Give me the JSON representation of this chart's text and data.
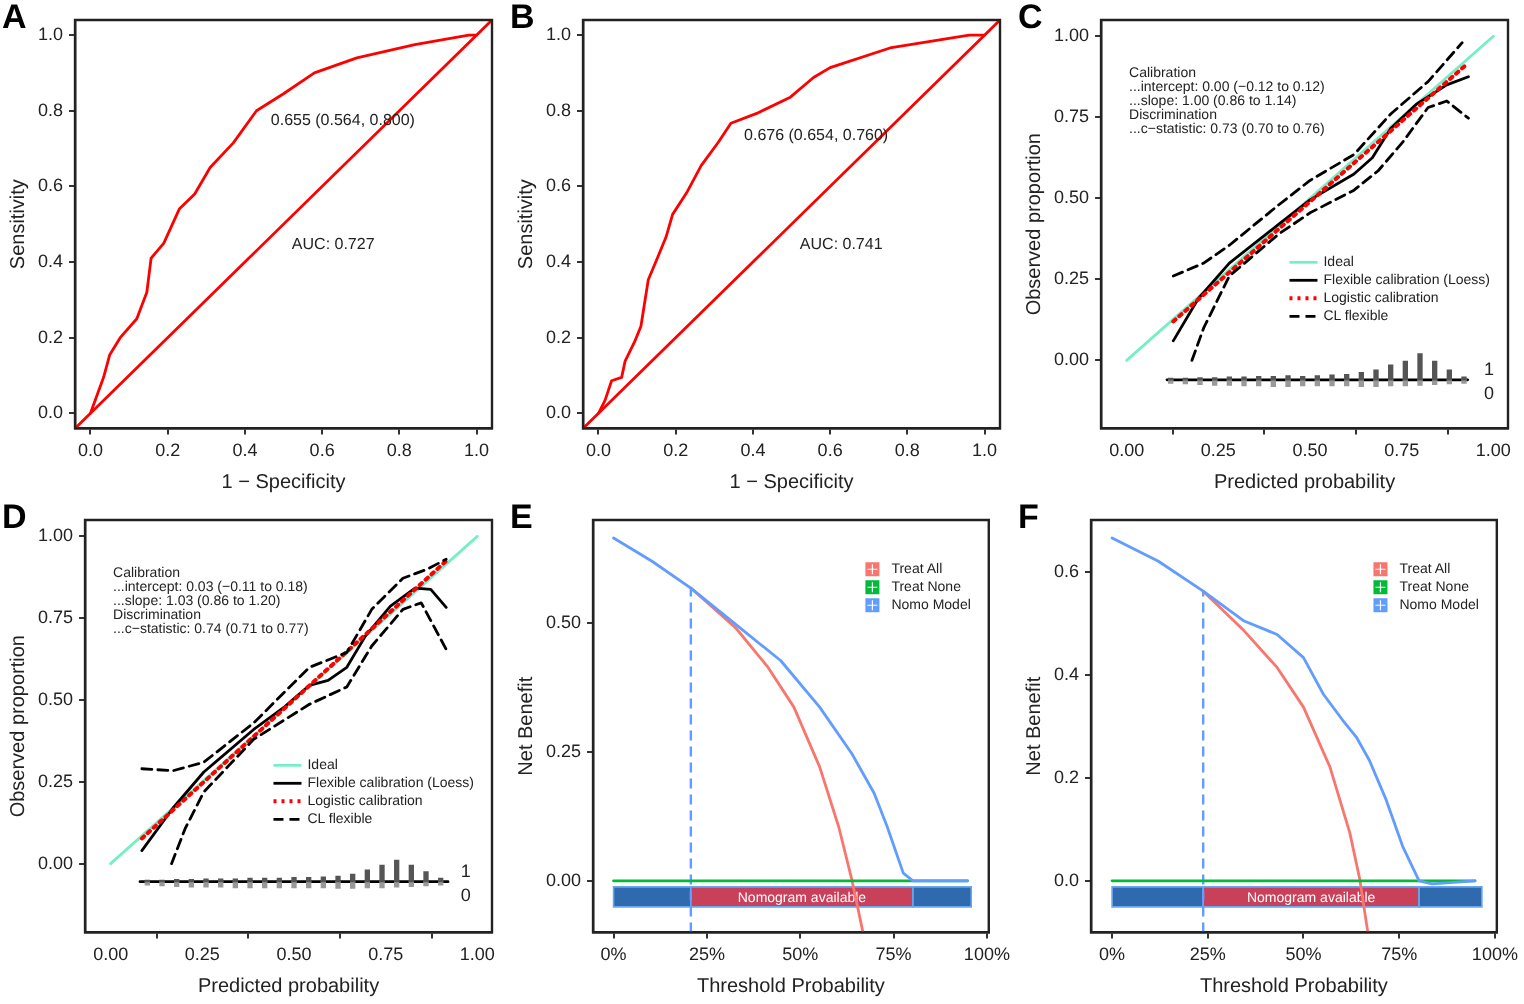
{
  "chart_data": [
    {
      "type": "line",
      "title": "A",
      "xlabel": "1 − Specificity",
      "ylabel": "Sensitivity",
      "xlim": [
        -0.04,
        1.04
      ],
      "ylim": [
        -0.04,
        1.04
      ],
      "xticks": [
        {
          "value": 0,
          "label": "0.0"
        },
        {
          "value": 0.2,
          "label": "0.2"
        },
        {
          "value": 0.4,
          "label": "0.4"
        },
        {
          "value": 0.6,
          "label": "0.6"
        },
        {
          "value": 0.8,
          "label": "0.8"
        },
        {
          "value": 1,
          "label": "1.0"
        }
      ],
      "yticks": [
        {
          "value": 0,
          "label": "0.0"
        },
        {
          "value": 0.2,
          "label": "0.2"
        },
        {
          "value": 0.4,
          "label": "0.4"
        },
        {
          "value": 0.6,
          "label": "0.6"
        },
        {
          "value": 0.8,
          "label": "0.8"
        },
        {
          "value": 1,
          "label": "1.0"
        }
      ],
      "series": [
        {
          "color": "#ff0000",
          "x": [
            0,
            0.034,
            0.05,
            0.077,
            0.12,
            0.146,
            0.157,
            0.19,
            0.23,
            0.27,
            0.31,
            0.37,
            0.43,
            0.5,
            0.58,
            0.69,
            0.84,
            0.98,
            1
          ],
          "values": [
            0,
            0.095,
            0.155,
            0.2,
            0.25,
            0.32,
            0.41,
            0.45,
            0.54,
            0.58,
            0.65,
            0.715,
            0.8,
            0.845,
            0.9,
            0.94,
            0.975,
            1,
            1
          ]
        },
        {
          "color": "#ff0000",
          "x": [
            -0.04,
            1.04
          ],
          "values": [
            -0.04,
            1.04
          ]
        }
      ],
      "annotations": [
        {
          "text": "0.655 (0.564, 0.800)",
          "x": 0.436,
          "y": 0.8
        },
        "AUC: 0.727"
      ]
    },
    {
      "type": "line",
      "title": "B",
      "xlabel": "1 − Specificity",
      "ylabel": "Sensitivity",
      "xlim": [
        -0.04,
        1.04
      ],
      "ylim": [
        -0.04,
        1.04
      ],
      "xticks": [
        {
          "value": 0,
          "label": "0.0"
        },
        {
          "value": 0.2,
          "label": "0.2"
        },
        {
          "value": 0.4,
          "label": "0.4"
        },
        {
          "value": 0.6,
          "label": "0.6"
        },
        {
          "value": 0.8,
          "label": "0.8"
        },
        {
          "value": 1,
          "label": "1.0"
        }
      ],
      "yticks": [
        {
          "value": 0,
          "label": "0.0"
        },
        {
          "value": 0.2,
          "label": "0.2"
        },
        {
          "value": 0.4,
          "label": "0.4"
        },
        {
          "value": 0.6,
          "label": "0.6"
        },
        {
          "value": 0.8,
          "label": "0.8"
        },
        {
          "value": 1,
          "label": "1.0"
        }
      ],
      "series": [
        {
          "color": "#ff0000",
          "x": [
            0,
            0.017,
            0.034,
            0.06,
            0.069,
            0.094,
            0.11,
            0.129,
            0.154,
            0.175,
            0.192,
            0.23,
            0.266,
            0.31,
            0.343,
            0.41,
            0.497,
            0.557,
            0.6,
            0.755,
            0.96,
            1
          ],
          "values": [
            0,
            0.034,
            0.086,
            0.095,
            0.138,
            0.19,
            0.23,
            0.353,
            0.414,
            0.466,
            0.526,
            0.586,
            0.655,
            0.716,
            0.767,
            0.793,
            0.836,
            0.888,
            0.914,
            0.966,
            1,
            1
          ]
        },
        {
          "color": "#ff0000",
          "x": [
            -0.04,
            1.04
          ],
          "values": [
            -0.04,
            1.04
          ]
        }
      ],
      "annotations": [
        {
          "text": "0.676 (0.654, 0.760)",
          "x": 0.346,
          "y": 0.76
        },
        "AUC: 0.741"
      ]
    },
    {
      "type": "line",
      "title": "C",
      "xlabel": "Predicted probability",
      "ylabel": "Observed proportion",
      "xlim": [
        -0.07,
        1.04
      ],
      "ylim": [
        -0.21,
        1.05
      ],
      "xticks": [
        {
          "value": 0,
          "label": "0.00"
        },
        {
          "value": 0.25,
          "label": "0.25"
        },
        {
          "value": 0.5,
          "label": "0.50"
        },
        {
          "value": 0.75,
          "label": "0.75"
        },
        {
          "value": 1,
          "label": "1.00"
        }
      ],
      "yticks": [
        {
          "value": 0,
          "label": "0.00"
        },
        {
          "value": 0.25,
          "label": "0.25"
        },
        {
          "value": 0.5,
          "label": "0.50"
        },
        {
          "value": 0.75,
          "label": "0.75"
        },
        {
          "value": 1,
          "label": "1.00"
        }
      ],
      "legend": "bottom right",
      "series": [
        {
          "name": "Ideal",
          "color": "#76eec6",
          "x": [
            0,
            1
          ],
          "values": [
            0,
            1
          ]
        },
        {
          "name": "Flexible calibration (Loess)",
          "color": "#000000",
          "x": [
            0.127,
            0.195,
            0.28,
            0.415,
            0.5,
            0.62,
            0.67,
            0.72,
            0.79,
            0.873,
            0.932
          ],
          "values": [
            0.06,
            0.19,
            0.3,
            0.42,
            0.495,
            0.575,
            0.625,
            0.715,
            0.79,
            0.85,
            0.875
          ]
        },
        {
          "name": "Logistic calibration",
          "color": "#ff0000",
          "line_style": "dotted",
          "x": [
            0.127,
            0.924
          ],
          "values": [
            0.12,
            0.91
          ]
        },
        {
          "name": "CL flexible",
          "color": "#000000",
          "line_style": "dashed",
          "x": [
            0.127,
            0.21,
            0.28,
            0.415,
            0.5,
            0.62,
            0.72,
            0.822,
            0.915
          ],
          "values": [
            0.26,
            0.3,
            0.355,
            0.48,
            0.555,
            0.635,
            0.76,
            0.86,
            0.98
          ]
        },
        {
          "color": "#000000",
          "line_style": "dashed",
          "x": [
            0.178,
            0.21,
            0.28,
            0.415,
            0.5,
            0.62,
            0.686,
            0.754,
            0.822,
            0.873,
            0.932
          ],
          "values": [
            0,
            0.1,
            0.26,
            0.39,
            0.455,
            0.525,
            0.585,
            0.675,
            0.78,
            0.8,
            0.747
          ]
        },
        {
          "type": "bar",
          "name": "1",
          "color": "#555555",
          "x": [
            0.12,
            0.16,
            0.2,
            0.24,
            0.28,
            0.32,
            0.36,
            0.4,
            0.44,
            0.48,
            0.52,
            0.56,
            0.6,
            0.64,
            0.68,
            0.72,
            0.76,
            0.8,
            0.84,
            0.88,
            0.92
          ],
          "base": [
            -0.06,
            -0.06,
            -0.06,
            -0.06,
            -0.06,
            -0.06,
            -0.06,
            -0.06,
            -0.06,
            -0.06,
            -0.06,
            -0.06,
            -0.06,
            -0.06,
            -0.06,
            -0.06,
            -0.06,
            -0.06,
            -0.06,
            -0.06,
            -0.06
          ],
          "values": [
            0.004,
            0.004,
            0.006,
            0.006,
            0.008,
            0.008,
            0.01,
            0.01,
            0.012,
            0.01,
            0.012,
            0.014,
            0.016,
            0.022,
            0.03,
            0.045,
            0.06,
            0.08,
            0.06,
            0.03,
            0.008
          ]
        },
        {
          "type": "bar",
          "name": "0",
          "color": "#999999",
          "x": [
            0.12,
            0.16,
            0.2,
            0.24,
            0.28,
            0.32,
            0.36,
            0.4,
            0.44,
            0.48,
            0.52,
            0.56,
            0.6,
            0.64,
            0.68,
            0.72,
            0.76,
            0.8,
            0.84,
            0.88,
            0.92
          ],
          "base": [
            -0.06,
            -0.06,
            -0.06,
            -0.06,
            -0.06,
            -0.06,
            -0.06,
            -0.06,
            -0.06,
            -0.06,
            -0.06,
            -0.06,
            -0.06,
            -0.06,
            -0.06,
            -0.06,
            -0.06,
            -0.06,
            -0.06,
            -0.06,
            -0.06
          ],
          "values": [
            -0.01,
            -0.012,
            -0.014,
            -0.016,
            -0.016,
            -0.018,
            -0.018,
            -0.02,
            -0.02,
            -0.018,
            -0.018,
            -0.018,
            -0.018,
            -0.02,
            -0.02,
            -0.018,
            -0.018,
            -0.016,
            -0.014,
            -0.012,
            -0.01
          ]
        },
        {
          "color": "#000000",
          "x": [
            0.11,
            0.93
          ],
          "values": [
            -0.06,
            -0.06
          ]
        }
      ],
      "annotations": [
        "Calibration",
        "...intercept: 0.00 (−0.12 to 0.12)",
        "...slope: 1.00 (0.86 to 1.14)",
        "Discrimination",
        "...c−statistic: 0.73 (0.70 to 0.76)"
      ]
    },
    {
      "type": "line",
      "title": "D",
      "xlabel": "Predicted probability",
      "ylabel": "Observed proportion",
      "xlim": [
        -0.07,
        1.04
      ],
      "ylim": [
        -0.21,
        1.05
      ],
      "xticks": [
        {
          "value": 0,
          "label": "0.00"
        },
        {
          "value": 0.25,
          "label": "0.25"
        },
        {
          "value": 0.5,
          "label": "0.50"
        },
        {
          "value": 0.75,
          "label": "0.75"
        },
        {
          "value": 1,
          "label": "1.00"
        }
      ],
      "yticks": [
        {
          "value": 0,
          "label": "0.00"
        },
        {
          "value": 0.25,
          "label": "0.25"
        },
        {
          "value": 0.5,
          "label": "0.50"
        },
        {
          "value": 0.75,
          "label": "0.75"
        },
        {
          "value": 1,
          "label": "1.00"
        }
      ],
      "legend": "bottom right",
      "series": [
        {
          "name": "Ideal",
          "color": "#76eec6",
          "x": [
            0,
            1
          ],
          "values": [
            0,
            1
          ]
        },
        {
          "name": "Flexible calibration (Loess)",
          "color": "#000000",
          "x": [
            0.085,
            0.17,
            0.254,
            0.39,
            0.475,
            0.542,
            0.593,
            0.644,
            0.695,
            0.763,
            0.83,
            0.873,
            0.915
          ],
          "values": [
            0.04,
            0.17,
            0.28,
            0.41,
            0.48,
            0.545,
            0.56,
            0.6,
            0.696,
            0.787,
            0.842,
            0.838,
            0.783
          ]
        },
        {
          "name": "Logistic calibration",
          "color": "#ff0000",
          "line_style": "dotted",
          "x": [
            0.085,
            0.915
          ],
          "values": [
            0.077,
            0.925
          ]
        },
        {
          "name": "CL flexible",
          "color": "#000000",
          "line_style": "dashed",
          "x": [
            0.085,
            0.17,
            0.254,
            0.39,
            0.542,
            0.644,
            0.712,
            0.797,
            0.864,
            0.915
          ],
          "values": [
            0.29,
            0.284,
            0.31,
            0.43,
            0.6,
            0.645,
            0.777,
            0.872,
            0.9,
            0.93
          ]
        },
        {
          "color": "#000000",
          "line_style": "dashed",
          "x": [
            0.166,
            0.203,
            0.254,
            0.39,
            0.542,
            0.644,
            0.712,
            0.797,
            0.847,
            0.915
          ],
          "values": [
            0,
            0.107,
            0.219,
            0.38,
            0.487,
            0.54,
            0.665,
            0.777,
            0.797,
            0.655
          ]
        },
        {
          "type": "bar",
          "name": "1",
          "color": "#555555",
          "x": [
            0.1,
            0.14,
            0.18,
            0.22,
            0.26,
            0.3,
            0.34,
            0.38,
            0.42,
            0.46,
            0.5,
            0.54,
            0.58,
            0.62,
            0.66,
            0.7,
            0.74,
            0.78,
            0.82,
            0.86,
            0.9
          ],
          "base": [
            -0.055,
            -0.055,
            -0.055,
            -0.055,
            -0.055,
            -0.055,
            -0.055,
            -0.055,
            -0.055,
            -0.055,
            -0.055,
            -0.055,
            -0.055,
            -0.055,
            -0.055,
            -0.055,
            -0.055,
            -0.055,
            -0.055,
            -0.055,
            -0.055
          ],
          "values": [
            0.004,
            0.004,
            0.006,
            0.006,
            0.008,
            0.008,
            0.008,
            0.01,
            0.01,
            0.01,
            0.012,
            0.012,
            0.014,
            0.016,
            0.022,
            0.035,
            0.05,
            0.065,
            0.05,
            0.03,
            0.01
          ]
        },
        {
          "type": "bar",
          "name": "0",
          "color": "#999999",
          "x": [
            0.1,
            0.14,
            0.18,
            0.22,
            0.26,
            0.3,
            0.34,
            0.38,
            0.42,
            0.46,
            0.5,
            0.54,
            0.58,
            0.62,
            0.66,
            0.7,
            0.74,
            0.78,
            0.82,
            0.86,
            0.9
          ],
          "base": [
            -0.055,
            -0.055,
            -0.055,
            -0.055,
            -0.055,
            -0.055,
            -0.055,
            -0.055,
            -0.055,
            -0.055,
            -0.055,
            -0.055,
            -0.055,
            -0.055,
            -0.055,
            -0.055,
            -0.055,
            -0.055,
            -0.055,
            -0.055,
            -0.055
          ],
          "values": [
            -0.01,
            -0.012,
            -0.014,
            -0.016,
            -0.016,
            -0.016,
            -0.018,
            -0.018,
            -0.018,
            -0.018,
            -0.018,
            -0.018,
            -0.018,
            -0.02,
            -0.02,
            -0.018,
            -0.018,
            -0.016,
            -0.014,
            -0.012,
            -0.01
          ]
        },
        {
          "color": "#000000",
          "x": [
            0.08,
            0.92
          ],
          "values": [
            -0.055,
            -0.055
          ]
        }
      ],
      "annotations": [
        "Calibration",
        "...intercept: 0.03 (−0.11 to 0.18)",
        "...slope: 1.03 (0.86 to 1.20)",
        "Discrimination",
        "...c−statistic: 0.74 (0.71 to 0.77)"
      ]
    },
    {
      "type": "line",
      "title": "E",
      "xlabel": "Threshold Probability",
      "ylabel": "Net Benefit",
      "xlim": [
        -0.055,
        1.005
      ],
      "ylim": [
        -0.1,
        0.7
      ],
      "xticks": [
        {
          "value": 0,
          "label": "0%"
        },
        {
          "value": 0.25,
          "label": "25%"
        },
        {
          "value": 0.5,
          "label": "50%"
        },
        {
          "value": 0.75,
          "label": "75%"
        },
        {
          "value": 1,
          "label": "100%"
        }
      ],
      "yticks": [
        {
          "value": 0,
          "label": "0.00"
        },
        {
          "value": 0.25,
          "label": "0.25"
        },
        {
          "value": 0.5,
          "label": "0.50"
        }
      ],
      "legend": "top right",
      "series": [
        {
          "name": "Treat All",
          "color": "#f8766d",
          "x": [
            0.207,
            0.328,
            0.414,
            0.483,
            0.552,
            0.603,
            0.638,
            0.668
          ],
          "values": [
            0.568,
            0.49,
            0.414,
            0.337,
            0.221,
            0.105,
            0.003,
            -0.1
          ]
        },
        {
          "name": "Treat None",
          "color": "#00ba38",
          "x": [
            0,
            0.948
          ],
          "values": [
            0,
            0
          ]
        },
        {
          "name": "Nomo Model",
          "color": "#619cff",
          "x": [
            0,
            0.103,
            0.207,
            0.328,
            0.448,
            0.552,
            0.638,
            0.698,
            0.733,
            0.776,
            0.802,
            0.948
          ],
          "values": [
            0.665,
            0.62,
            0.568,
            0.497,
            0.427,
            0.337,
            0.247,
            0.17,
            0.105,
            0.015,
            0,
            0
          ]
        }
      ],
      "ref_lines": [
        {
          "axis": "x",
          "value": 0.207,
          "color": "#619cff",
          "line_style": "dashed"
        }
      ],
      "bands": [
        {
          "axis": "x",
          "from": 0,
          "to": 0.207,
          "color": "#2e6aad"
        },
        {
          "axis": "x",
          "from": 0.207,
          "to": 0.802,
          "label": "Nomogram available",
          "color": "#c9405a"
        },
        {
          "axis": "x",
          "from": 0.802,
          "to": 0.958,
          "color": "#2e6aad"
        }
      ]
    },
    {
      "type": "line",
      "title": "F",
      "xlabel": "Threshold Probability",
      "ylabel": "Net Benefit",
      "xlim": [
        -0.055,
        1.005
      ],
      "ylim": [
        -0.1,
        0.7
      ],
      "xticks": [
        {
          "value": 0,
          "label": "0%"
        },
        {
          "value": 0.25,
          "label": "25%"
        },
        {
          "value": 0.5,
          "label": "50%"
        },
        {
          "value": 0.75,
          "label": "75%"
        },
        {
          "value": 1,
          "label": "100%"
        }
      ],
      "yticks": [
        {
          "value": 0,
          "label": "0.0"
        },
        {
          "value": 0.2,
          "label": "0.2"
        },
        {
          "value": 0.4,
          "label": "0.4"
        },
        {
          "value": 0.6,
          "label": "0.6"
        }
      ],
      "legend": "top right",
      "series": [
        {
          "name": "Treat All",
          "color": "#f8766d",
          "x": [
            0.238,
            0.345,
            0.431,
            0.5,
            0.569,
            0.621,
            0.647,
            0.668
          ],
          "values": [
            0.562,
            0.485,
            0.414,
            0.337,
            0.221,
            0.093,
            0.003,
            -0.1
          ]
        },
        {
          "name": "Treat None",
          "color": "#00ba38",
          "x": [
            0,
            0.948
          ],
          "values": [
            0,
            0
          ]
        },
        {
          "name": "Nomo Model",
          "color": "#619cff",
          "x": [
            0,
            0.121,
            0.238,
            0.345,
            0.431,
            0.5,
            0.552,
            0.603,
            0.638,
            0.672,
            0.716,
            0.759,
            0.802,
            0.836,
            0.948
          ],
          "values": [
            0.665,
            0.62,
            0.562,
            0.504,
            0.478,
            0.433,
            0.362,
            0.311,
            0.279,
            0.234,
            0.157,
            0.067,
            0,
            -0.006,
            0
          ]
        }
      ],
      "ref_lines": [
        {
          "axis": "x",
          "value": 0.238,
          "color": "#619cff",
          "line_style": "dashed"
        }
      ],
      "bands": [
        {
          "axis": "x",
          "from": 0,
          "to": 0.238,
          "color": "#2e6aad"
        },
        {
          "axis": "x",
          "from": 0.238,
          "to": 0.802,
          "label": "Nomogram available",
          "color": "#c9405a"
        },
        {
          "axis": "x",
          "from": 0.802,
          "to": 0.966,
          "color": "#2e6aad"
        }
      ]
    }
  ]
}
